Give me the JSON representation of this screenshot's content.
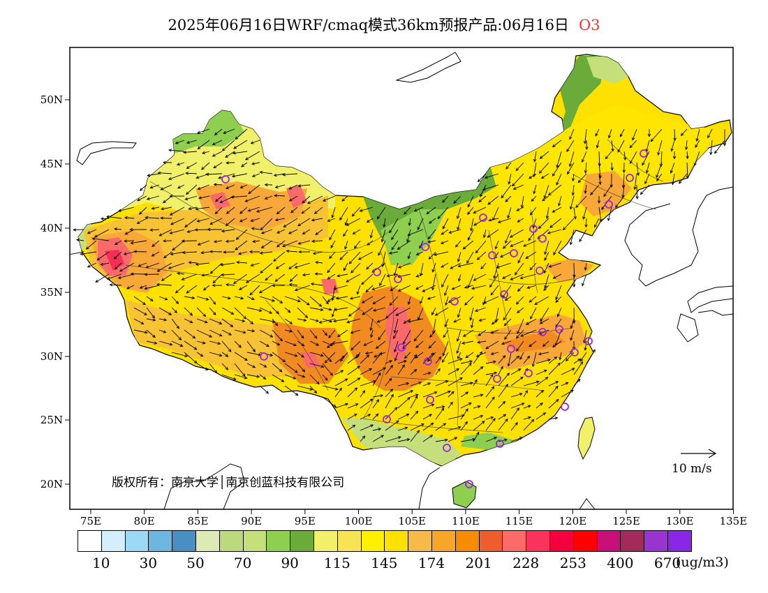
{
  "title": {
    "main": "2025年06月16日WRF/cmaq模式36km预报产品:06月16日",
    "species": "O3"
  },
  "map": {
    "lat_labels": [
      "50N",
      "45N",
      "40N",
      "35N",
      "30N",
      "25N",
      "20N"
    ],
    "lon_labels": [
      "75E",
      "80E",
      "85E",
      "90E",
      "95E",
      "100E",
      "105E",
      "110E",
      "115E",
      "120E",
      "125E",
      "130E",
      "135E"
    ],
    "copyright": "版权所有：南京大学│南京创蓝科技有限公司",
    "wind_reference": "10 m/s",
    "colors": {
      "green_dark": "#6aab3a",
      "green_mid": "#8fcf4f",
      "green_light": "#c5e07a",
      "yellow_light": "#f1f06a",
      "yellow": "#ffe600",
      "gold": "#f7c334",
      "orange_light": "#f7a838",
      "orange": "#f18a20",
      "orange_red": "#ec5e2f",
      "pink": "#fb6a6a",
      "crimson": "#f52e56",
      "site_marker": "#a020f0"
    }
  },
  "colorbar": {
    "labels": [
      "10",
      "30",
      "50",
      "70",
      "90",
      "115",
      "145",
      "174",
      "201",
      "228",
      "253",
      "400",
      "670"
    ],
    "unit": "(ug/m3)",
    "colors": [
      "#ffffff",
      "#d3effc",
      "#9bd9f5",
      "#6cb6e0",
      "#4a8fc4",
      "#dcebb5",
      "#bcd97d",
      "#c5e07a",
      "#8fcf4f",
      "#6aab3a",
      "#f1f06a",
      "#f6e454",
      "#fff000",
      "#ffe100",
      "#f7b948",
      "#f8a628",
      "#f88c00",
      "#ee5e2c",
      "#fd6a6a",
      "#f9335a",
      "#f4003e",
      "#fe0000",
      "#c90f7a",
      "#a32b5b",
      "#9934d1",
      "#8a27e6"
    ]
  }
}
